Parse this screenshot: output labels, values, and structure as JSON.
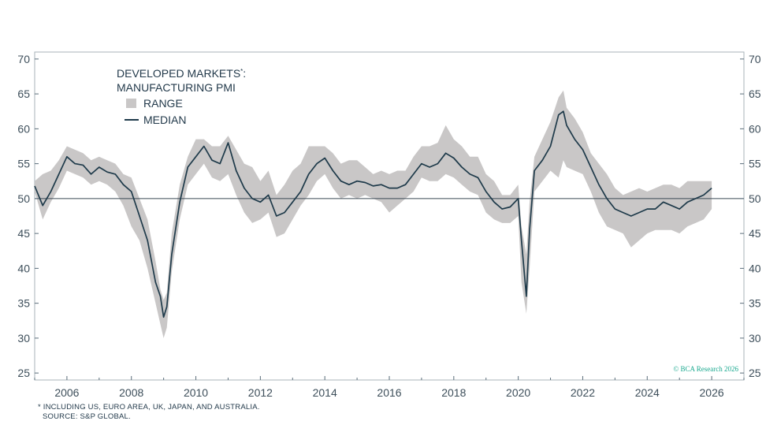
{
  "chart_data": {
    "type": "area",
    "title_line1": "DEVELOPED MARKETS",
    "title_sup": "*",
    "title_line1_suffix": ":",
    "title_line2": "MANUFACTURING PMI",
    "legend": [
      {
        "name": "RANGE",
        "kind": "band"
      },
      {
        "name": "MEDIAN",
        "kind": "line"
      }
    ],
    "xlim": [
      2005.0,
      2027.0
    ],
    "ylim": [
      24,
      71
    ],
    "x_ticks": [
      2006,
      2008,
      2010,
      2012,
      2014,
      2016,
      2018,
      2020,
      2022,
      2024,
      2026
    ],
    "y_ticks": [
      25,
      30,
      35,
      40,
      45,
      50,
      55,
      60,
      65,
      70
    ],
    "reference_line": 50,
    "series": [
      {
        "name": "MEDIAN",
        "x": [
          2005.0,
          2005.25,
          2005.5,
          2005.75,
          2006.0,
          2006.25,
          2006.5,
          2006.75,
          2007.0,
          2007.25,
          2007.5,
          2007.75,
          2008.0,
          2008.25,
          2008.5,
          2008.75,
          2008.9,
          2009.0,
          2009.1,
          2009.25,
          2009.5,
          2009.75,
          2010.0,
          2010.25,
          2010.5,
          2010.75,
          2011.0,
          2011.25,
          2011.5,
          2011.75,
          2012.0,
          2012.25,
          2012.5,
          2012.75,
          2013.0,
          2013.25,
          2013.5,
          2013.75,
          2014.0,
          2014.25,
          2014.5,
          2014.75,
          2015.0,
          2015.25,
          2015.5,
          2015.75,
          2016.0,
          2016.25,
          2016.5,
          2016.75,
          2017.0,
          2017.25,
          2017.5,
          2017.75,
          2018.0,
          2018.25,
          2018.5,
          2018.75,
          2019.0,
          2019.25,
          2019.5,
          2019.75,
          2020.0,
          2020.1,
          2020.25,
          2020.35,
          2020.5,
          2020.75,
          2021.0,
          2021.25,
          2021.4,
          2021.5,
          2021.75,
          2022.0,
          2022.25,
          2022.5,
          2022.75,
          2023.0,
          2023.25,
          2023.5,
          2023.75,
          2024.0,
          2024.25,
          2024.5,
          2024.75,
          2025.0,
          2025.25,
          2025.5,
          2025.75,
          2026.0
        ],
        "values": [
          51.8,
          49.0,
          51.0,
          53.5,
          56.0,
          55.0,
          54.8,
          53.5,
          54.5,
          53.8,
          53.5,
          52.0,
          51.0,
          47.5,
          44.0,
          38.0,
          36.0,
          33.0,
          34.5,
          42.0,
          49.5,
          54.5,
          56.0,
          57.5,
          55.5,
          55.0,
          58.0,
          54.0,
          51.5,
          50.0,
          49.5,
          50.5,
          47.5,
          48.0,
          49.5,
          51.0,
          53.5,
          55.0,
          55.8,
          54.0,
          52.5,
          52.0,
          52.5,
          52.3,
          51.8,
          52.0,
          51.5,
          51.5,
          52.0,
          53.5,
          55.0,
          54.5,
          55.0,
          56.5,
          55.8,
          54.5,
          53.5,
          53.0,
          51.0,
          49.5,
          48.5,
          48.8,
          50.0,
          44.0,
          36.0,
          45.5,
          54.0,
          55.5,
          57.5,
          62.0,
          62.5,
          60.5,
          58.5,
          57.0,
          54.5,
          52.0,
          50.0,
          48.5,
          48.0,
          47.5,
          48.0,
          48.5,
          48.5,
          49.5,
          49.0,
          48.5,
          49.5,
          50.0,
          50.5,
          51.5
        ]
      },
      {
        "name": "RANGE",
        "x": [
          2005.0,
          2005.25,
          2005.5,
          2005.75,
          2006.0,
          2006.25,
          2006.5,
          2006.75,
          2007.0,
          2007.25,
          2007.5,
          2007.75,
          2008.0,
          2008.25,
          2008.5,
          2008.75,
          2008.9,
          2009.0,
          2009.1,
          2009.25,
          2009.5,
          2009.75,
          2010.0,
          2010.25,
          2010.5,
          2010.75,
          2011.0,
          2011.25,
          2011.5,
          2011.75,
          2012.0,
          2012.25,
          2012.5,
          2012.75,
          2013.0,
          2013.25,
          2013.5,
          2013.75,
          2014.0,
          2014.25,
          2014.5,
          2014.75,
          2015.0,
          2015.25,
          2015.5,
          2015.75,
          2016.0,
          2016.25,
          2016.5,
          2016.75,
          2017.0,
          2017.25,
          2017.5,
          2017.75,
          2018.0,
          2018.25,
          2018.5,
          2018.75,
          2019.0,
          2019.25,
          2019.5,
          2019.75,
          2020.0,
          2020.1,
          2020.25,
          2020.35,
          2020.5,
          2020.75,
          2021.0,
          2021.25,
          2021.4,
          2021.5,
          2021.75,
          2022.0,
          2022.25,
          2022.5,
          2022.75,
          2023.0,
          2023.25,
          2023.5,
          2023.75,
          2024.0,
          2024.25,
          2024.5,
          2024.75,
          2025.0,
          2025.25,
          2025.5,
          2025.75,
          2026.0
        ],
        "low": [
          51.0,
          47.0,
          49.5,
          51.5,
          54.0,
          53.5,
          53.0,
          52.0,
          52.5,
          52.0,
          51.0,
          49.0,
          46.0,
          44.0,
          40.0,
          35.0,
          32.0,
          30.0,
          31.5,
          39.5,
          47.0,
          52.0,
          53.5,
          55.0,
          53.0,
          52.5,
          53.5,
          50.5,
          48.0,
          46.5,
          47.0,
          48.0,
          44.5,
          45.0,
          47.0,
          49.0,
          50.5,
          52.5,
          53.5,
          51.5,
          50.0,
          50.5,
          50.0,
          50.5,
          50.0,
          49.5,
          48.0,
          49.0,
          50.0,
          51.0,
          53.0,
          52.5,
          52.5,
          53.5,
          53.0,
          52.0,
          51.0,
          50.5,
          48.0,
          47.0,
          46.5,
          46.5,
          47.5,
          38.0,
          33.5,
          40.0,
          51.0,
          52.5,
          54.0,
          53.0,
          55.5,
          54.5,
          54.0,
          53.5,
          51.0,
          48.0,
          46.0,
          45.5,
          45.0,
          43.0,
          44.0,
          45.0,
          45.5,
          45.5,
          45.5,
          45.0,
          46.0,
          46.5,
          47.0,
          48.5
        ],
        "high": [
          52.5,
          53.5,
          54.0,
          55.5,
          57.5,
          57.0,
          56.5,
          55.5,
          56.0,
          55.5,
          55.0,
          53.5,
          53.0,
          50.0,
          47.0,
          41.0,
          37.0,
          35.5,
          36.5,
          45.0,
          52.0,
          56.0,
          58.5,
          58.5,
          57.5,
          57.5,
          59.0,
          57.0,
          55.0,
          54.5,
          52.5,
          54.0,
          50.5,
          52.0,
          54.0,
          55.0,
          57.5,
          57.5,
          57.5,
          56.5,
          55.0,
          55.5,
          55.5,
          54.5,
          53.5,
          54.0,
          53.5,
          54.0,
          54.0,
          56.0,
          57.5,
          57.5,
          58.0,
          60.5,
          58.5,
          57.5,
          56.0,
          56.0,
          53.5,
          52.5,
          50.5,
          50.5,
          52.0,
          46.0,
          42.0,
          49.5,
          56.0,
          58.5,
          61.0,
          64.5,
          65.5,
          63.0,
          61.5,
          59.5,
          56.5,
          55.0,
          53.5,
          51.5,
          50.5,
          51.0,
          51.5,
          51.0,
          51.5,
          52.0,
          52.0,
          51.5,
          52.5,
          52.5,
          52.5,
          52.5
        ]
      }
    ],
    "copyright": "© BCA Research 2026"
  },
  "footnote_line1": "* INCLUDING US, EURO AREA, UK, JAPAN, AND AUSTRALIA.",
  "footnote_line2": "SOURCE: S&P GLOBAL.",
  "colors": {
    "axis": "#5a6d7a",
    "frame": "#a9b3ba",
    "band": "#c9c7c7",
    "median": "#1e3a4a",
    "reference": "#3b4a55",
    "copyright": "#1aa98f"
  }
}
